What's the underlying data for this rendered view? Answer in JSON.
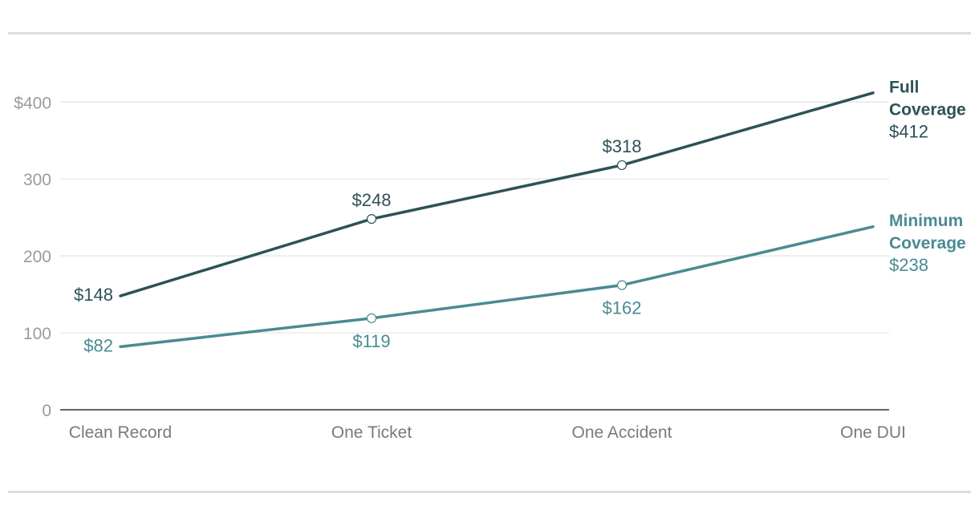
{
  "chart_data": {
    "type": "line",
    "title": "",
    "xlabel": "",
    "ylabel": "",
    "categories": [
      "Clean Record",
      "One Ticket",
      "One Accident",
      "One DUI"
    ],
    "ylim": [
      0,
      420
    ],
    "yticks": [
      0,
      100,
      200,
      300,
      400
    ],
    "ytick_labels": [
      "0",
      "100",
      "200",
      "300",
      "$400"
    ],
    "grid": true,
    "series": [
      {
        "name": "Full Coverage",
        "end_label_lines": [
          "Full",
          "Coverage"
        ],
        "values": [
          148,
          248,
          318,
          412
        ],
        "value_labels": [
          "$148",
          "$248",
          "$318",
          "$412"
        ],
        "color": "#2e5157"
      },
      {
        "name": "Minimum Coverage",
        "end_label_lines": [
          "Minimum",
          "Coverage"
        ],
        "values": [
          82,
          119,
          162,
          238
        ],
        "value_labels": [
          "$82",
          "$119",
          "$162",
          "$238"
        ],
        "color": "#4a8b93"
      }
    ],
    "colors": {
      "grid": "#e3e3e3",
      "axis": "#333333",
      "tick_label": "#9b9b9b",
      "x_label": "#7a7a7a"
    }
  }
}
